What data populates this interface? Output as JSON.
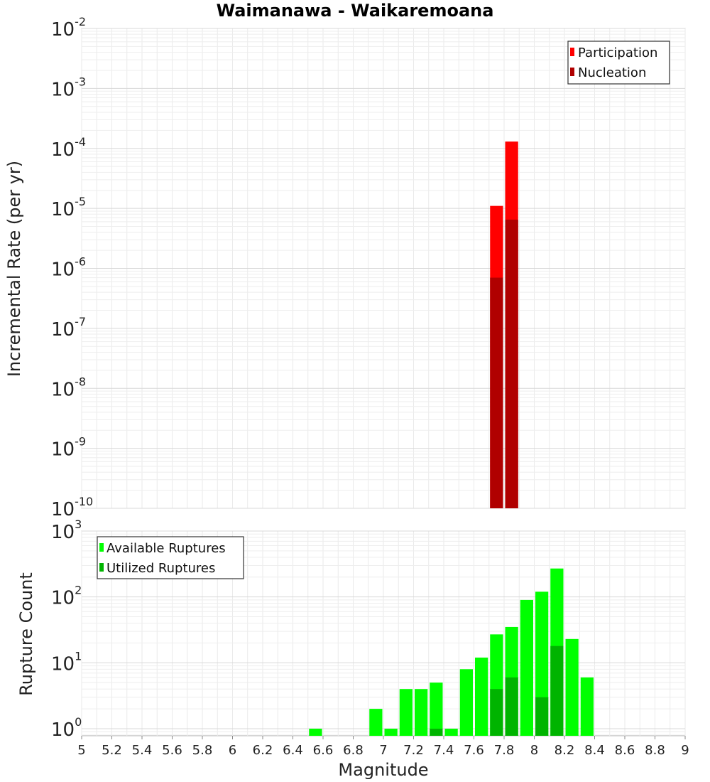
{
  "chart_data": [
    {
      "type": "bar",
      "title": "Waimanawa - Waikaremoana",
      "ylabel": "Incremental Rate (per yr)",
      "xlabel": "",
      "yscale": "log",
      "ylim": [
        1e-10,
        0.01
      ],
      "xlim": [
        5,
        9
      ],
      "y_tick_labels": [
        {
          "exp": -2,
          "base": "10",
          "sup": "-2"
        },
        {
          "exp": -3,
          "base": "10",
          "sup": "-3"
        },
        {
          "exp": -4,
          "base": "10",
          "sup": "-4"
        },
        {
          "exp": -5,
          "base": "10",
          "sup": "-5"
        },
        {
          "exp": -6,
          "base": "10",
          "sup": "-6"
        },
        {
          "exp": -7,
          "base": "10",
          "sup": "-7"
        },
        {
          "exp": -8,
          "base": "10",
          "sup": "-8"
        },
        {
          "exp": -9,
          "base": "10",
          "sup": "-9"
        },
        {
          "exp": -10,
          "base": "10",
          "sup": "-10"
        }
      ],
      "legend": {
        "position": "top-right",
        "entries": [
          "Participation",
          "Nucleation"
        ]
      },
      "series": [
        {
          "name": "Participation",
          "color": "#ff0000",
          "x": [
            7.75,
            7.85
          ],
          "values": [
            1.1e-05,
            0.00013
          ]
        },
        {
          "name": "Nucleation",
          "color": "#b00000",
          "x": [
            7.75,
            7.85
          ],
          "values": [
            7e-07,
            6.5e-06
          ]
        }
      ]
    },
    {
      "type": "bar",
      "title": "",
      "ylabel": "Rupture Count",
      "xlabel": "Magnitude",
      "yscale": "log",
      "ylim": [
        0.78,
        1000
      ],
      "xlim": [
        5,
        9
      ],
      "y_tick_labels": [
        {
          "exp": 3,
          "base": "10",
          "sup": "3"
        },
        {
          "exp": 2,
          "base": "10",
          "sup": "2"
        },
        {
          "exp": 1,
          "base": "10",
          "sup": "1"
        },
        {
          "exp": 0,
          "base": "10",
          "sup": "0"
        }
      ],
      "x_ticks": [
        "5",
        "5.2",
        "5.4",
        "5.6",
        "5.8",
        "6",
        "6.2",
        "6.4",
        "6.6",
        "6.8",
        "7",
        "7.2",
        "7.4",
        "7.6",
        "7.8",
        "8",
        "8.2",
        "8.4",
        "8.6",
        "8.8",
        "9"
      ],
      "legend": {
        "position": "top-left",
        "entries": [
          "Available Ruptures",
          "Utilized Ruptures"
        ]
      },
      "series": [
        {
          "name": "Available Ruptures",
          "color": "#00ff00",
          "x": [
            6.55,
            6.95,
            7.05,
            7.15,
            7.25,
            7.35,
            7.45,
            7.55,
            7.65,
            7.75,
            7.85,
            7.95,
            8.05,
            8.15,
            8.25,
            8.35
          ],
          "values": [
            1,
            2,
            1,
            4,
            4,
            5,
            1,
            8,
            12,
            27,
            35,
            90,
            120,
            270,
            23,
            6
          ]
        },
        {
          "name": "Utilized Ruptures",
          "color": "#00b400",
          "x": [
            7.35,
            7.75,
            7.85,
            8.05,
            8.15
          ],
          "values": [
            1,
            4,
            6,
            3,
            18
          ]
        }
      ]
    }
  ]
}
